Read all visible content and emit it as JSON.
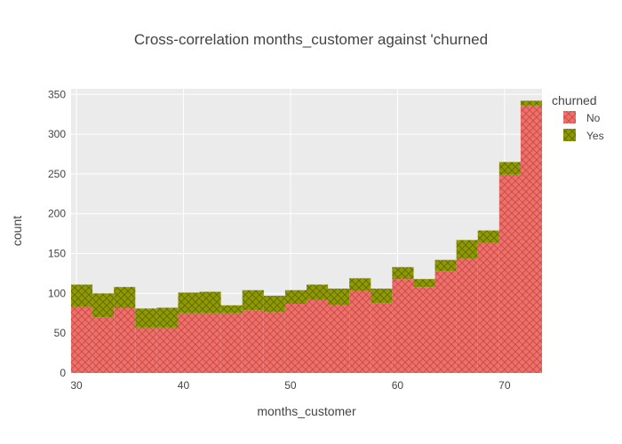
{
  "chart_data": {
    "type": "bar",
    "title": "Cross-correlation months_customer against 'churned",
    "xlabel": "months_customer",
    "ylabel": "count",
    "xlim": [
      29.5,
      73.5
    ],
    "ylim": [
      0,
      357
    ],
    "x_ticks": [
      30,
      40,
      50,
      60,
      70
    ],
    "y_ticks": [
      0,
      50,
      100,
      150,
      200,
      250,
      300,
      350
    ],
    "bin_width": 2,
    "bin_starts": [
      29.5,
      31.5,
      33.5,
      35.5,
      37.5,
      39.5,
      41.5,
      43.5,
      45.5,
      47.5,
      49.5,
      51.5,
      53.5,
      55.5,
      57.5,
      59.5,
      61.5,
      63.5,
      65.5,
      67.5,
      69.5,
      71.5
    ],
    "stacked": true,
    "grid": true,
    "legend_title": "churned",
    "legend_position": "top-right",
    "series": [
      {
        "name": "No",
        "color": "#EF6F6A",
        "pattern": "crosshatch",
        "values": [
          83,
          70,
          82,
          57,
          57,
          75,
          75,
          75,
          79,
          77,
          87,
          92,
          85,
          103,
          88,
          118,
          108,
          128,
          144,
          164,
          249,
          336
        ]
      },
      {
        "name": "Yes",
        "color": "#8F9900",
        "pattern": "crosshatch",
        "values": [
          28,
          30,
          26,
          24,
          25,
          26,
          27,
          10,
          25,
          20,
          17,
          19,
          21,
          16,
          18,
          15,
          10,
          14,
          23,
          15,
          16,
          6
        ]
      }
    ]
  }
}
